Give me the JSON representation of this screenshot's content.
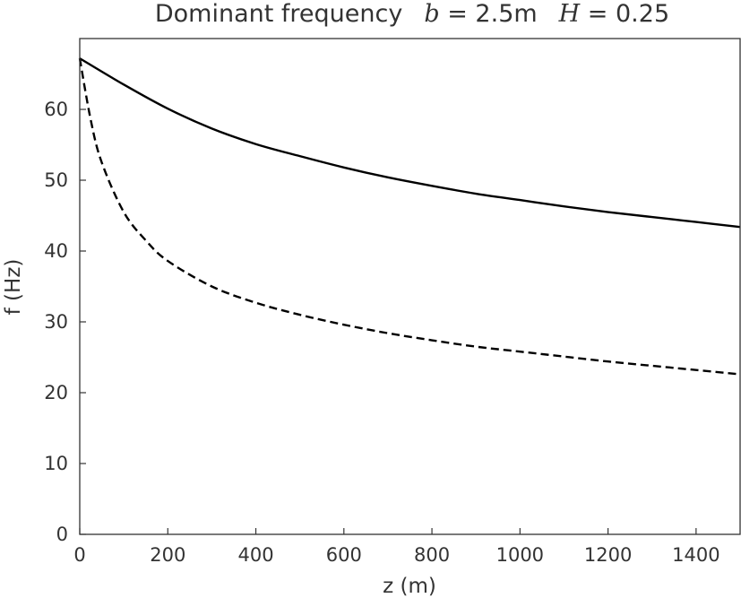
{
  "chart_data": {
    "type": "line",
    "title": {
      "prefix": "Dominant frequency",
      "param1_symbol": "b",
      "param1_value": " = 2.5m",
      "param2_symbol": "H",
      "param2_value": " = 0.25"
    },
    "xlabel": "z (m)",
    "ylabel": "f (Hz)",
    "xlim": [
      0,
      1500
    ],
    "ylim": [
      0,
      70
    ],
    "xticks": [
      0,
      200,
      400,
      600,
      800,
      1000,
      1200,
      1400
    ],
    "yticks": [
      0,
      10,
      20,
      30,
      40,
      50,
      60
    ],
    "grid": false,
    "series": [
      {
        "style": "solid",
        "color": "#000000",
        "x": [
          0,
          100,
          200,
          300,
          400,
          500,
          600,
          700,
          800,
          900,
          1000,
          1100,
          1200,
          1300,
          1400,
          1500
        ],
        "y": [
          67.2,
          63.5,
          60.1,
          57.3,
          55.1,
          53.4,
          51.8,
          50.4,
          49.2,
          48.1,
          47.2,
          46.3,
          45.5,
          44.8,
          44.1,
          43.4
        ]
      },
      {
        "style": "dashed",
        "color": "#000000",
        "x": [
          0,
          25,
          50,
          100,
          150,
          200,
          300,
          400,
          500,
          600,
          700,
          800,
          900,
          1000,
          1100,
          1200,
          1300,
          1400,
          1500
        ],
        "y": [
          67.2,
          58.5,
          52.5,
          45.5,
          41.5,
          38.6,
          35.0,
          32.7,
          31.0,
          29.6,
          28.4,
          27.4,
          26.5,
          25.8,
          25.1,
          24.4,
          23.8,
          23.2,
          22.6
        ]
      }
    ]
  }
}
